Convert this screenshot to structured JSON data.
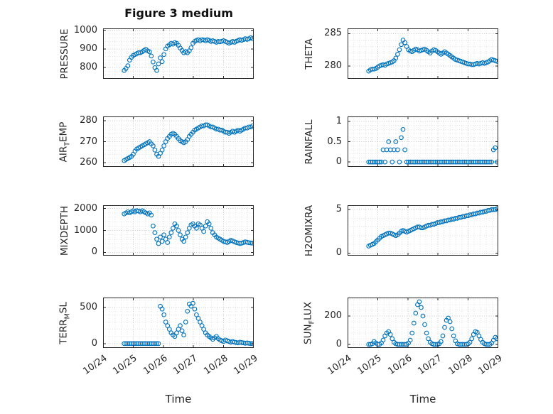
{
  "figure": {
    "title": "Figure 3 medium",
    "colors": {
      "marker": "#0072BD",
      "axis": "#262626",
      "grid_major": "#c8c8c8",
      "grid_minor": "#e2e2e2"
    }
  },
  "chart_data": {
    "type": "scatter",
    "layout": "4x2",
    "xlabel": "Time",
    "xlim": [
      24,
      29
    ],
    "xtick_values": [
      24,
      25,
      26,
      27,
      28,
      29
    ],
    "xtick_labels": [
      "10/24",
      "10/25",
      "10/26",
      "10/27",
      "10/28",
      "10/29"
    ],
    "x": [
      24.7,
      24.76,
      24.82,
      24.88,
      24.94,
      25.0,
      25.06,
      25.12,
      25.18,
      25.24,
      25.3,
      25.36,
      25.42,
      25.48,
      25.54,
      25.6,
      25.66,
      25.72,
      25.78,
      25.84,
      25.9,
      25.96,
      26.02,
      26.08,
      26.14,
      26.2,
      26.26,
      26.32,
      26.38,
      26.44,
      26.5,
      26.56,
      26.62,
      26.68,
      26.74,
      26.8,
      26.86,
      26.92,
      26.98,
      27.04,
      27.1,
      27.16,
      27.22,
      27.28,
      27.34,
      27.4,
      27.46,
      27.52,
      27.58,
      27.64,
      27.7,
      27.76,
      27.82,
      27.88,
      27.94,
      28.0,
      28.06,
      28.12,
      28.18,
      28.24,
      28.3,
      28.36,
      28.42,
      28.48,
      28.54,
      28.6,
      28.66,
      28.72,
      28.78,
      28.84,
      28.9,
      28.96
    ],
    "charts": [
      {
        "name": "pressure",
        "ylabel": "PRESSURE",
        "ylim": [
          740,
          1010
        ],
        "yticks": [
          800,
          900,
          1000
        ],
        "values": [
          785,
          795,
          810,
          840,
          855,
          865,
          870,
          875,
          880,
          880,
          885,
          892,
          898,
          890,
          885,
          862,
          830,
          800,
          785,
          820,
          852,
          832,
          870,
          900,
          915,
          922,
          930,
          926,
          934,
          930,
          920,
          905,
          892,
          880,
          886,
          880,
          890,
          906,
          930,
          940,
          946,
          950,
          944,
          950,
          948,
          944,
          950,
          946,
          940,
          944,
          940,
          936,
          940,
          938,
          941,
          944,
          940,
          936,
          931,
          935,
          940,
          936,
          941,
          945,
          950,
          946,
          950,
          955,
          951,
          955,
          960,
          956
        ]
      },
      {
        "name": "theta",
        "ylabel": "THETA",
        "ylim": [
          278,
          285.8
        ],
        "yticks": [
          280,
          285
        ],
        "values": [
          279.2,
          279.4,
          279.5,
          279.5,
          279.6,
          279.8,
          280.0,
          280.1,
          280.2,
          280.1,
          280.3,
          280.4,
          280.5,
          280.6,
          280.8,
          281.2,
          281.8,
          282.5,
          283.3,
          284.0,
          283.6,
          283.0,
          282.5,
          282.3,
          282.2,
          282.4,
          282.6,
          282.5,
          282.3,
          282.4,
          282.5,
          282.6,
          282.4,
          282.2,
          282.0,
          282.3,
          282.5,
          282.4,
          282.2,
          282.0,
          281.8,
          282.0,
          282.2,
          282.0,
          281.8,
          281.6,
          281.4,
          281.2,
          281.0,
          280.9,
          280.8,
          280.7,
          280.6,
          280.5,
          280.4,
          280.3,
          280.3,
          280.2,
          280.2,
          280.3,
          280.4,
          280.3,
          280.4,
          280.5,
          280.4,
          280.5,
          280.6,
          280.8,
          281.0,
          280.9,
          280.8,
          280.7
        ]
      },
      {
        "name": "air-temp",
        "ylabel": "AIR_TEMP",
        "ylim": [
          258,
          282
        ],
        "yticks": [
          260,
          270,
          280
        ],
        "values": [
          261.0,
          261.5,
          262.0,
          262.5,
          263.0,
          264.0,
          265.5,
          266.5,
          267.0,
          267.5,
          268.0,
          268.5,
          269.0,
          269.5,
          270.0,
          269.0,
          268.0,
          266.0,
          264.0,
          263.0,
          264.5,
          266.0,
          268.0,
          270.0,
          271.5,
          272.5,
          273.5,
          274.0,
          273.5,
          272.5,
          271.5,
          270.5,
          270.0,
          269.5,
          270.0,
          271.0,
          272.5,
          273.5,
          274.5,
          275.5,
          276.0,
          276.5,
          277.0,
          277.5,
          277.5,
          278.0,
          278.0,
          277.5,
          277.0,
          277.0,
          276.5,
          276.0,
          276.0,
          275.5,
          275.5,
          275.0,
          274.5,
          274.5,
          274.0,
          274.5,
          275.0,
          274.5,
          275.0,
          275.5,
          275.0,
          275.5,
          276.0,
          276.5,
          276.5,
          277.0,
          277.0,
          277.5
        ]
      },
      {
        "name": "rainfall",
        "ylabel": "RAINFALL",
        "ylim": [
          -0.12,
          1.12
        ],
        "yticks": [
          0,
          0.5,
          1
        ],
        "values": [
          0,
          0,
          0,
          0,
          0,
          0,
          0,
          0,
          0.3,
          0,
          0.3,
          0.5,
          0.3,
          0,
          0.3,
          0.5,
          0.3,
          0,
          0.6,
          0.8,
          0.3,
          0,
          0,
          0,
          0,
          0,
          0,
          0,
          0,
          0,
          0,
          0,
          0,
          0,
          0,
          0,
          0,
          0,
          0,
          0,
          0,
          0,
          0,
          0,
          0,
          0,
          0,
          0,
          0,
          0,
          0,
          0,
          0,
          0,
          0,
          0,
          0,
          0,
          0,
          0,
          0,
          0,
          0,
          0,
          0,
          0,
          0,
          0,
          0,
          0.3,
          0.35,
          0
        ]
      },
      {
        "name": "mixdepth",
        "ylabel": "MIXDEPTH",
        "ylim": [
          -150,
          2150
        ],
        "yticks": [
          0,
          1000,
          2000
        ],
        "values": [
          1750,
          1800,
          1850,
          1800,
          1850,
          1900,
          1850,
          1900,
          1880,
          1850,
          1900,
          1850,
          1800,
          1750,
          1800,
          1700,
          1200,
          900,
          600,
          400,
          700,
          500,
          800,
          600,
          450,
          700,
          900,
          1100,
          1300,
          1200,
          1000,
          800,
          600,
          500,
          700,
          900,
          1100,
          1250,
          1300,
          1200,
          1100,
          1300,
          1250,
          1100,
          950,
          1200,
          1400,
          1300,
          1100,
          900,
          800,
          700,
          650,
          600,
          550,
          500,
          480,
          450,
          500,
          550,
          520,
          480,
          450,
          430,
          400,
          420,
          450,
          480,
          460,
          440,
          430,
          420
        ]
      },
      {
        "name": "h2omixra",
        "ylabel": "H2OMIXRA",
        "ylim": [
          -0.3,
          5.5
        ],
        "yticks": [
          0,
          5
        ],
        "values": [
          0.8,
          0.9,
          1.0,
          1.1,
          1.3,
          1.5,
          1.7,
          1.9,
          2.0,
          2.1,
          2.2,
          2.3,
          2.3,
          2.2,
          2.1,
          2.0,
          2.1,
          2.3,
          2.5,
          2.6,
          2.5,
          2.4,
          2.5,
          2.6,
          2.7,
          2.8,
          2.9,
          3.0,
          3.0,
          2.9,
          2.9,
          3.0,
          3.1,
          3.2,
          3.2,
          3.3,
          3.3,
          3.4,
          3.5,
          3.5,
          3.6,
          3.6,
          3.7,
          3.7,
          3.8,
          3.8,
          3.9,
          3.9,
          4.0,
          4.0,
          4.1,
          4.1,
          4.2,
          4.2,
          4.3,
          4.3,
          4.4,
          4.4,
          4.5,
          4.5,
          4.6,
          4.6,
          4.7,
          4.7,
          4.8,
          4.8,
          4.9,
          4.9,
          5.0,
          5.0,
          5.0,
          5.1
        ]
      },
      {
        "name": "terr-msl",
        "ylabel": "TERR_MSL",
        "ylim": [
          -60,
          640
        ],
        "yticks": [
          0,
          500
        ],
        "values": [
          0,
          0,
          0,
          0,
          0,
          0,
          0,
          0,
          0,
          0,
          0,
          0,
          0,
          0,
          0,
          0,
          0,
          0,
          0,
          0,
          520,
          480,
          400,
          300,
          250,
          200,
          150,
          120,
          100,
          150,
          200,
          250,
          180,
          120,
          300,
          450,
          550,
          520,
          560,
          480,
          400,
          350,
          300,
          250,
          200,
          150,
          120,
          100,
          80,
          60,
          80,
          100,
          70,
          50,
          40,
          30,
          50,
          40,
          30,
          20,
          30,
          20,
          15,
          10,
          20,
          15,
          10,
          5,
          10,
          5,
          0,
          0
        ]
      },
      {
        "name": "sun-flux",
        "ylabel": "SUN_FLUX",
        "ylim": [
          -25,
          330
        ],
        "yticks": [
          0,
          200
        ],
        "values": [
          0,
          0,
          5,
          20,
          10,
          0,
          0,
          10,
          30,
          60,
          80,
          90,
          70,
          40,
          15,
          5,
          0,
          0,
          0,
          0,
          0,
          0,
          10,
          30,
          80,
          150,
          220,
          280,
          300,
          260,
          200,
          140,
          80,
          40,
          15,
          5,
          0,
          0,
          0,
          5,
          20,
          60,
          120,
          170,
          185,
          160,
          110,
          60,
          25,
          5,
          0,
          0,
          0,
          0,
          0,
          5,
          15,
          40,
          70,
          90,
          85,
          60,
          35,
          15,
          5,
          0,
          0,
          0,
          10,
          30,
          50,
          40
        ]
      }
    ]
  }
}
